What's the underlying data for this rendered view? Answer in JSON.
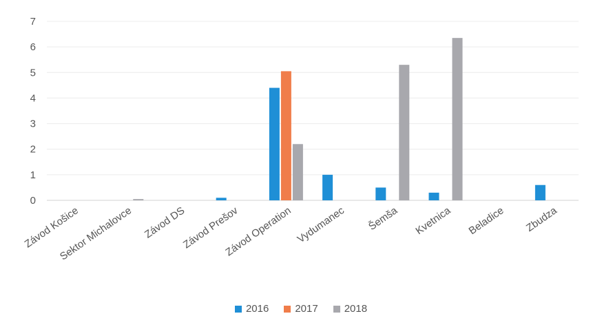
{
  "chart_data": {
    "type": "bar",
    "categories": [
      "Závod Košice",
      "Sektor Michalovce",
      "Závod DS",
      "Závod Prešov",
      "Závod Operation",
      "Vydumanec",
      "Šemša",
      "Kvetnica",
      "Beladice",
      "Zbudza"
    ],
    "series": [
      {
        "name": "2016",
        "color": "#1f8fd6",
        "values": [
          0,
          0,
          0,
          0.1,
          4.4,
          1.0,
          0.5,
          0.3,
          0,
          0.6
        ]
      },
      {
        "name": "2017",
        "color": "#f07d4a",
        "values": [
          0,
          0,
          0,
          0,
          5.05,
          0,
          0,
          0,
          0,
          0
        ]
      },
      {
        "name": "2018",
        "color": "#a8a8ad",
        "values": [
          0,
          0.05,
          0,
          0,
          2.2,
          0,
          5.3,
          6.35,
          0,
          0
        ]
      }
    ],
    "yticks": [
      "0",
      "1",
      "2",
      "3",
      "4",
      "5",
      "6",
      "7"
    ],
    "ylim": [
      0,
      7
    ],
    "grid": true,
    "legend_position": "bottom"
  }
}
